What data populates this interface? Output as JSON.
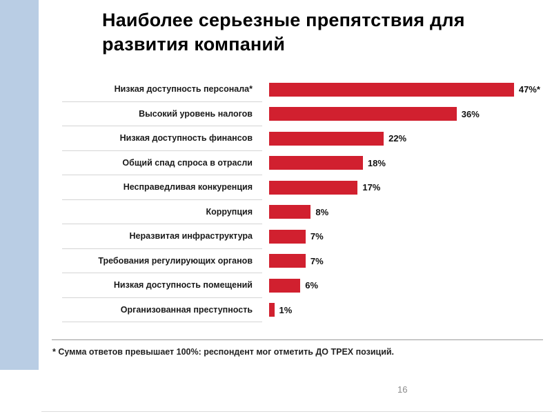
{
  "slide": {
    "title": "Наиболее серьезные препятствия для развития компаний",
    "footnote": "* Сумма ответов превышает 100%: респондент мог отметить ДО ТРЕХ позиций.",
    "page_number": "16"
  },
  "colors": {
    "bar": "#d1202f",
    "accent_strip": "#b9cde4"
  },
  "chart_data": {
    "type": "bar",
    "orientation": "horizontal",
    "title": "Наиболее серьезные препятствия для развития компаний",
    "categories": [
      "Низкая доступность персонала*",
      "Высокий уровень налогов",
      "Низкая доступность финансов",
      "Общий спад спроса в отрасли",
      "Несправедливая конкуренция",
      "Коррупция",
      "Неразвитая инфраструктура",
      "Требования регулирующих органов",
      "Низкая доступность помещений",
      "Организованная преступность"
    ],
    "values": [
      47,
      36,
      22,
      18,
      17,
      8,
      7,
      7,
      6,
      1
    ],
    "value_labels": [
      "47%*",
      "36%",
      "22%",
      "18%",
      "17%",
      "8%",
      "7%",
      "7%",
      "6%",
      "1%"
    ],
    "xlabel": "",
    "ylabel": "",
    "xlim": [
      0,
      50
    ],
    "grid": false,
    "legend": false,
    "bar_color": "#d1202f"
  }
}
